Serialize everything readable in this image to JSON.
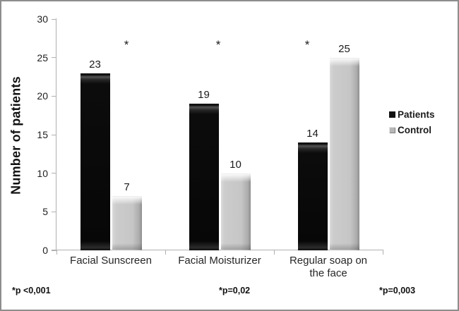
{
  "chart_data": {
    "type": "bar",
    "title": "",
    "xlabel": "",
    "ylabel": "Number of patients",
    "categories": [
      "Facial Sunscreen",
      "Facial Moisturizer",
      "Regular soap on\nthe face"
    ],
    "series": [
      {
        "name": "Patients",
        "color": "#0d0d0d",
        "values": [
          23,
          19,
          14
        ]
      },
      {
        "name": "Control",
        "color": "#c6c6c6",
        "values": [
          7,
          10,
          25
        ]
      }
    ],
    "ylim": [
      0,
      30
    ],
    "yticks": [
      0,
      5,
      10,
      15,
      20,
      25,
      30
    ],
    "grid": false,
    "legend_position": "right",
    "bar_value_labels": true,
    "significance_markers": [
      "*",
      "*",
      "*"
    ],
    "annotations": [
      "*p <0,001",
      "*p=0,02",
      "*p=0,003"
    ],
    "colors": {
      "axis": "#b0b0b0",
      "text": "#1a1a1a",
      "frame_border": "#8d8d8d"
    }
  }
}
